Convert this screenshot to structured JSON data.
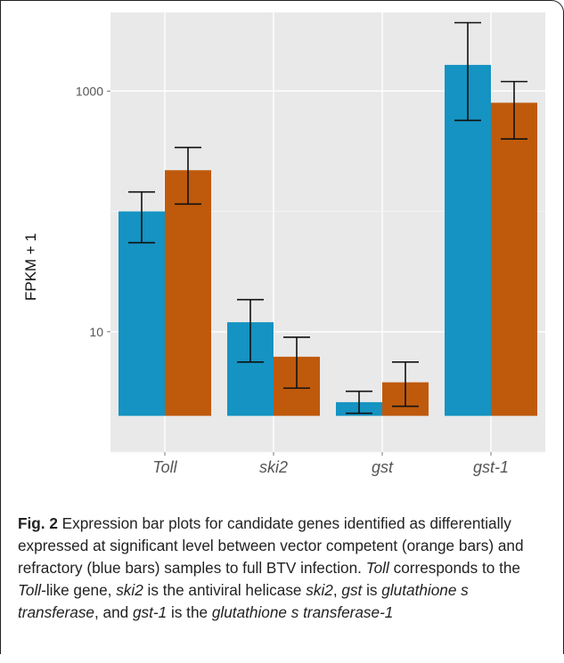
{
  "chart_data": {
    "type": "bar",
    "ylabel": "FPKM + 1",
    "yscale": "log",
    "yticks": [
      {
        "value": 10,
        "label": "10"
      },
      {
        "value": 1000,
        "label": "1000"
      }
    ],
    "ylim": [
      1,
      4500
    ],
    "categories": [
      "Toll",
      "ski2",
      "gst",
      "gst-1"
    ],
    "series": [
      {
        "color": "#1593c2",
        "values": [
          100,
          12,
          2.6,
          1650
        ],
        "error_low": [
          55,
          5.6,
          2.1,
          570
        ],
        "error_high": [
          145,
          18.5,
          3.2,
          3700
        ]
      },
      {
        "color": "#bf5a0c",
        "values": [
          220,
          6.2,
          3.8,
          800
        ],
        "error_low": [
          115,
          3.4,
          2.4,
          400
        ],
        "error_high": [
          340,
          9.0,
          5.6,
          1200
        ]
      }
    ],
    "grid": true,
    "legend": "none"
  },
  "caption": {
    "fig_label": "Fig. 2",
    "parts": [
      " Expression bar plots for candidate genes identified as differentially expressed at significant level between vector competent (orange bars) and refractory (blue bars) samples to full BTV infection. ",
      "Toll",
      " corresponds to the ",
      "Toll",
      "-like gene, ",
      "ski2",
      " is the antiviral helicase ",
      "ski2",
      ", ",
      "gst",
      " is ",
      "glutathione s transferase",
      ", and ",
      "gst-1",
      " is the ",
      "glutathione s transferase-1"
    ]
  }
}
